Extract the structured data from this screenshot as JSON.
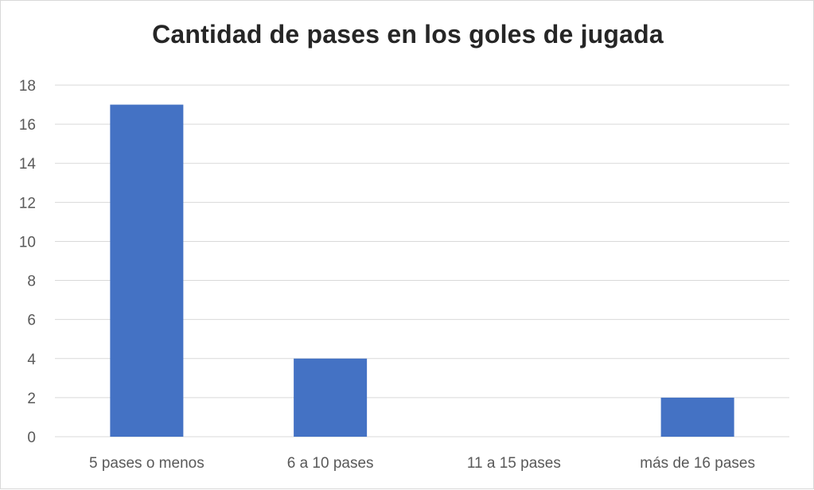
{
  "chart_data": {
    "type": "bar",
    "title": "Cantidad de pases en los goles de jugada",
    "xlabel": "",
    "ylabel": "",
    "categories": [
      "5 pases o menos",
      "6 a 10 pases",
      "11 a 15 pases",
      "más de 16 pases"
    ],
    "values": [
      17,
      4,
      0,
      2
    ],
    "ylim": [
      0,
      18
    ],
    "yticks": [
      "0",
      "2",
      "4",
      "6",
      "8",
      "10",
      "12",
      "14",
      "16",
      "18"
    ],
    "grid": true,
    "legend": "none",
    "bar_color": "#4472c4",
    "grid_color": "#d9d9d9",
    "text_color": "#595959"
  }
}
